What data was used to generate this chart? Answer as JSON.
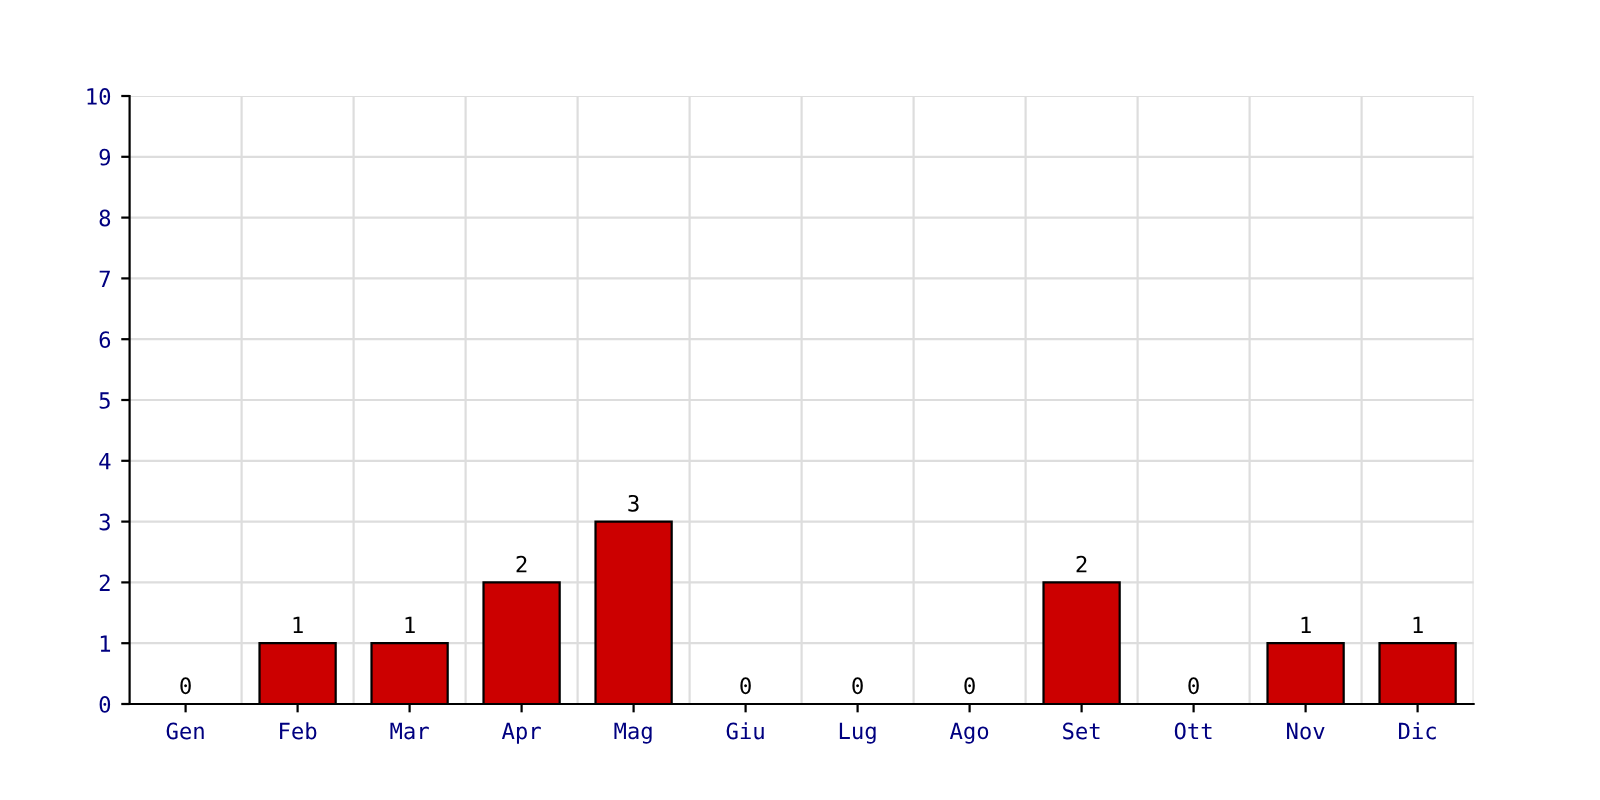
{
  "chart_data": {
    "type": "bar",
    "categories": [
      "Gen",
      "Feb",
      "Mar",
      "Apr",
      "Mag",
      "Giu",
      "Lug",
      "Ago",
      "Set",
      "Ott",
      "Nov",
      "Dic"
    ],
    "values": [
      0,
      1,
      1,
      2,
      3,
      0,
      0,
      0,
      2,
      0,
      1,
      1
    ],
    "color": "#cc0000",
    "ylim": [
      0,
      10
    ],
    "yticks": [
      0,
      1,
      2,
      3,
      4,
      5,
      6,
      7,
      8,
      9,
      10
    ],
    "grid": true,
    "data_labels": true
  }
}
